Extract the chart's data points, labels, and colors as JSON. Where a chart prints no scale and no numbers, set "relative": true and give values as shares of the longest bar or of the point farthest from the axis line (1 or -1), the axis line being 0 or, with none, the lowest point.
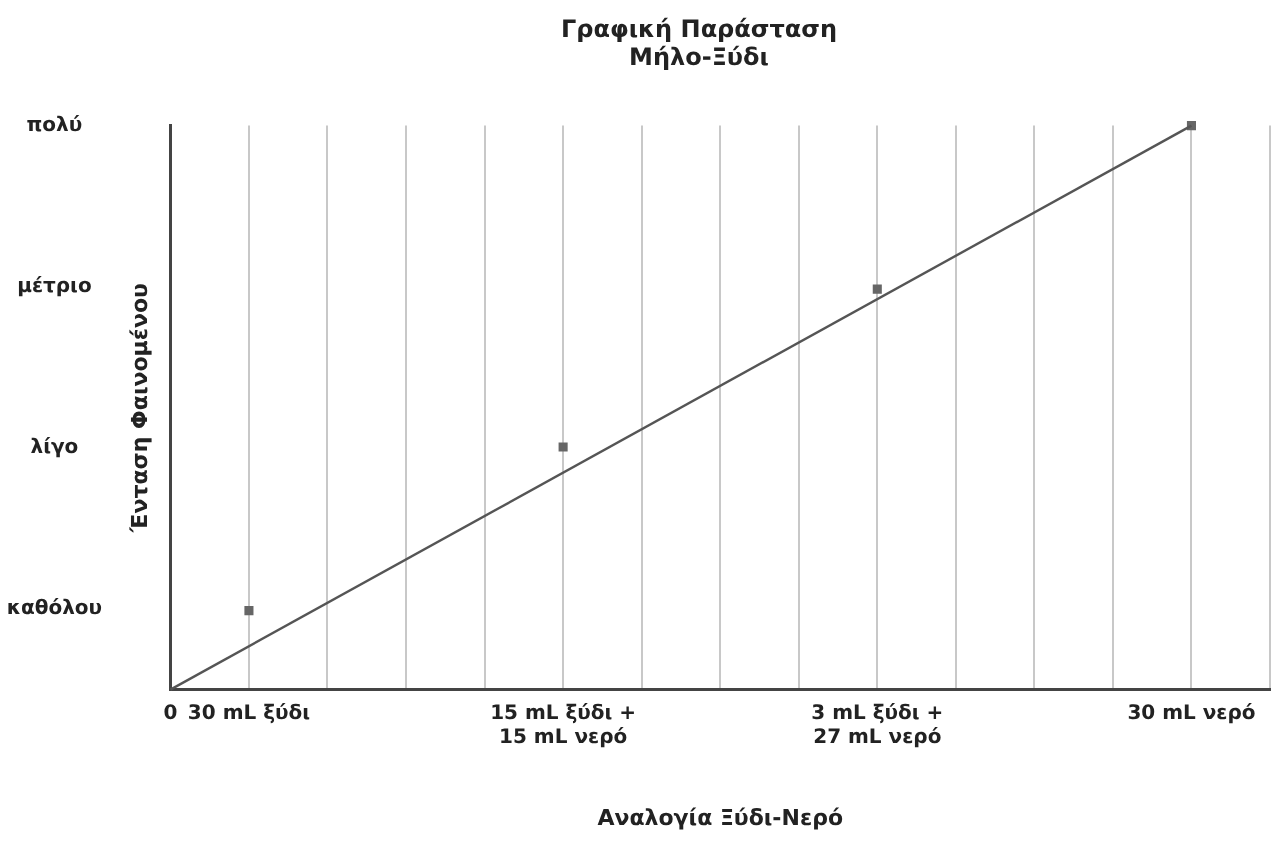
{
  "chart_data": {
    "type": "scatter",
    "title": "Γραφική Παράσταση\nΜήλο-Ξύδι",
    "xlabel": "Αναλογία Ξύδι-Νερό",
    "ylabel": "Ένταση Φαινομένου",
    "relative": true,
    "categories": [
      "0",
      "30 mL ξύδι",
      null,
      null,
      null,
      "15 mL ξύδι +\n15 mL νερό",
      null,
      null,
      null,
      "3 mL ξύδι +\n27 mL νερό",
      null,
      null,
      null,
      "30 mL νερό",
      null
    ],
    "series": [
      {
        "type": "line",
        "color": "#555555",
        "values": [
          0,
          null,
          null,
          null,
          null,
          null,
          null,
          null,
          null,
          null,
          null,
          null,
          null,
          1,
          null
        ],
        "marker": "none",
        "line_style": "solid"
      },
      {
        "color": "#666666",
        "values": [
          null,
          0.14,
          null,
          null,
          null,
          0.43,
          null,
          null,
          null,
          0.71,
          null,
          null,
          null,
          1,
          null
        ],
        "marker": "square"
      }
    ],
    "annotations": [
      "καθόλου",
      "λίγο",
      "μέτριο",
      "πολύ"
    ],
    "grid": "x",
    "legend": false
  }
}
